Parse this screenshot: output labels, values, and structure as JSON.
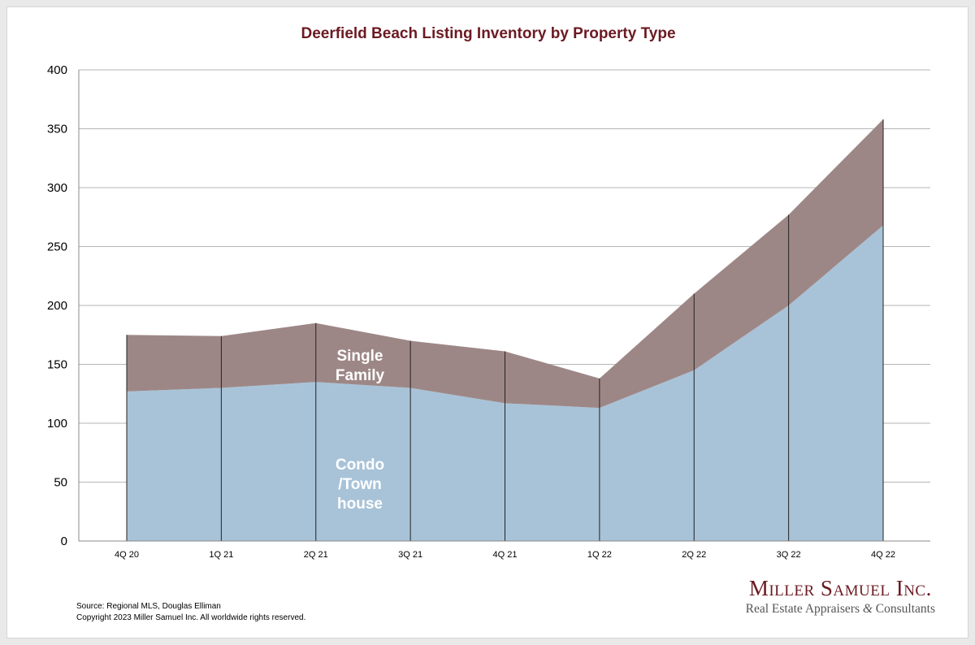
{
  "chart_data": {
    "type": "area",
    "stacked": true,
    "title": "Deerfield Beach Listing Inventory by Property Type",
    "categories": [
      "4Q 20",
      "1Q 21",
      "2Q 21",
      "3Q 21",
      "4Q 21",
      "1Q 22",
      "2Q 22",
      "3Q 22",
      "4Q 22"
    ],
    "series": [
      {
        "name": "Condo /Town house",
        "values": [
          127,
          130,
          135,
          130,
          117,
          113,
          145,
          200,
          268
        ]
      },
      {
        "name": "Single Family",
        "values": [
          48,
          44,
          50,
          40,
          44,
          25,
          65,
          77,
          90
        ]
      }
    ],
    "series_label_lines": {
      "condo": [
        "Condo",
        "/Town",
        "house"
      ],
      "single_family": [
        "Single",
        "Family"
      ]
    },
    "ylim": [
      0,
      400
    ],
    "yticks": [
      0,
      50,
      100,
      150,
      200,
      250,
      300,
      350,
      400
    ],
    "grid": true,
    "legend": "none",
    "colors": {
      "condo": "#a8c3d8",
      "single_family": "#9d8786",
      "title": "#6b1a22",
      "grid": "#b5b5b5",
      "dividers": "#222222",
      "series_label": "#ffffff"
    }
  },
  "source_lines": [
    "Source: Regional MLS, Douglas Elliman",
    "Copyright 2023 Miller Samuel Inc.  All worldwide rights reserved."
  ],
  "logo": {
    "name": "Miller Samuel Inc.",
    "tagline_before": "Real Estate Appraisers ",
    "ampersand": "&",
    "tagline_after": " Consultants",
    "name_color": "#6b1a22"
  }
}
